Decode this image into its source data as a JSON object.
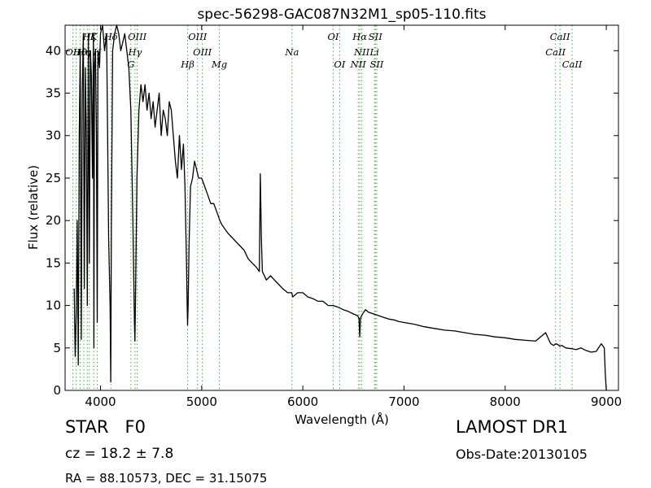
{
  "chart_data": {
    "type": "line",
    "title": "spec-56298-GAC087N32M1_sp05-110.fits",
    "xlabel": "Wavelength (Å)",
    "ylabel": "Flux (relative)",
    "xlim": [
      3650,
      9120
    ],
    "ylim": [
      0,
      43
    ],
    "xticks": [
      4000,
      5000,
      6000,
      7000,
      8000,
      9000
    ],
    "yticks": [
      0,
      5,
      10,
      15,
      20,
      25,
      30,
      35,
      40
    ],
    "grid": false,
    "series": [
      {
        "color": "#000000",
        "x": [
          3740,
          3750,
          3760,
          3770,
          3780,
          3790,
          3800,
          3810,
          3820,
          3830,
          3840,
          3850,
          3860,
          3870,
          3880,
          3890,
          3900,
          3910,
          3920,
          3930,
          3935,
          3940,
          3950,
          3960,
          3968,
          3975,
          3990,
          4000,
          4020,
          4040,
          4060,
          4080,
          4095,
          4101,
          4108,
          4120,
          4140,
          4160,
          4180,
          4200,
          4220,
          4240,
          4260,
          4280,
          4300,
          4320,
          4335,
          4340,
          4345,
          4360,
          4380,
          4400,
          4420,
          4440,
          4460,
          4480,
          4500,
          4520,
          4540,
          4560,
          4580,
          4600,
          4620,
          4640,
          4660,
          4680,
          4700,
          4720,
          4740,
          4760,
          4780,
          4800,
          4820,
          4835,
          4850,
          4857,
          4861,
          4866,
          4875,
          4890,
          4910,
          4930,
          4950,
          4970,
          5000,
          5030,
          5060,
          5090,
          5120,
          5150,
          5180,
          5200,
          5230,
          5260,
          5300,
          5340,
          5380,
          5420,
          5460,
          5500,
          5540,
          5570,
          5580,
          5590,
          5600,
          5640,
          5680,
          5720,
          5760,
          5800,
          5850,
          5890,
          5900,
          5950,
          6000,
          6050,
          6100,
          6150,
          6200,
          6250,
          6300,
          6350,
          6400,
          6450,
          6500,
          6540,
          6555,
          6563,
          6570,
          6590,
          6620,
          6650,
          6700,
          6750,
          6800,
          6850,
          6900,
          6950,
          7000,
          7100,
          7200,
          7300,
          7400,
          7500,
          7600,
          7700,
          7800,
          7900,
          8000,
          8100,
          8200,
          8300,
          8400,
          8450,
          8480,
          8500,
          8520,
          8542,
          8560,
          8600,
          8662,
          8700,
          8750,
          8800,
          8850,
          8900,
          8950,
          8980,
          8990,
          9000
        ],
        "y": [
          12,
          4,
          9,
          20,
          3,
          30,
          40,
          6,
          35,
          42,
          12,
          38,
          30,
          10,
          42,
          15,
          40,
          37,
          25,
          42,
          5,
          38,
          40,
          30,
          8,
          40,
          38,
          42,
          43,
          40,
          42,
          18,
          10,
          1,
          20,
          40,
          42,
          43,
          42,
          40,
          41,
          42,
          40,
          38,
          33,
          20,
          8,
          5.8,
          10,
          25,
          33,
          36,
          34,
          36,
          33,
          35,
          32,
          34,
          31,
          33,
          35,
          30,
          33,
          32,
          30,
          34,
          33,
          30,
          27,
          25,
          30,
          26,
          29,
          24,
          15,
          10,
          7.7,
          10,
          17,
          24,
          25,
          27,
          26,
          25,
          25,
          24,
          23,
          22,
          22,
          21,
          20,
          19.5,
          19,
          18.5,
          18,
          17.5,
          17,
          16.5,
          15.5,
          15,
          14.5,
          14,
          25.5,
          18,
          14,
          13,
          13.5,
          13,
          12.5,
          12,
          11.5,
          11.5,
          11,
          11.5,
          11.5,
          11,
          10.8,
          10.5,
          10.5,
          10,
          10,
          9.8,
          9.5,
          9.3,
          9,
          8.8,
          8.5,
          6.3,
          8.5,
          9,
          9.5,
          9.2,
          9,
          8.8,
          8.6,
          8.4,
          8.3,
          8.1,
          8,
          7.8,
          7.5,
          7.3,
          7.1,
          7,
          6.8,
          6.6,
          6.5,
          6.3,
          6.2,
          6,
          5.9,
          5.8,
          6.8,
          5.5,
          5.3,
          5.5,
          5.4,
          5.2,
          5.3,
          5,
          4.9,
          4.8,
          5,
          4.7,
          4.5,
          4.6,
          5.5,
          5,
          2,
          0
        ]
      }
    ],
    "lines": [
      {
        "x": 3727,
        "label": "OII",
        "row": 1
      },
      {
        "x": 3760,
        "label": "",
        "row": 0
      },
      {
        "x": 3798,
        "label": "Hθ",
        "row": 1
      },
      {
        "x": 3835,
        "label": "Hη",
        "row": 1
      },
      {
        "x": 3869,
        "label": "",
        "row": 0
      },
      {
        "x": 3889,
        "label": "Hζ",
        "row": 0
      },
      {
        "x": 3933,
        "label": "K",
        "row": 0
      },
      {
        "x": 3968,
        "label": "H",
        "row": 1
      },
      {
        "x": 4102,
        "label": "Hδ",
        "row": 0
      },
      {
        "x": 4300,
        "label": "G",
        "row": 2
      },
      {
        "x": 4341,
        "label": "Hγ",
        "row": 1
      },
      {
        "x": 4363,
        "label": "OIII",
        "row": 0
      },
      {
        "x": 4861,
        "label": "Hβ",
        "row": 2
      },
      {
        "x": 4959,
        "label": "OIII",
        "row": 0
      },
      {
        "x": 5007,
        "label": "OIII",
        "row": 1
      },
      {
        "x": 5175,
        "label": "Mg",
        "row": 2
      },
      {
        "x": 5893,
        "label": "Na",
        "row": 1
      },
      {
        "x": 6300,
        "label": "OI",
        "row": 0
      },
      {
        "x": 6364,
        "label": "OI",
        "row": 2
      },
      {
        "x": 6548,
        "label": "NII",
        "row": 2
      },
      {
        "x": 6563,
        "label": "Hα",
        "row": 0
      },
      {
        "x": 6583,
        "label": "NII",
        "row": 1
      },
      {
        "x": 6708,
        "label": "Li",
        "row": 1
      },
      {
        "x": 6717,
        "label": "SII",
        "row": 0
      },
      {
        "x": 6731,
        "label": "SII",
        "row": 2
      },
      {
        "x": 8498,
        "label": "CaII",
        "row": 1
      },
      {
        "x": 8542,
        "label": "CaII",
        "row": 0
      },
      {
        "x": 8662,
        "label": "CaII",
        "row": 2
      }
    ],
    "line_color": "#3fb23f"
  },
  "info": {
    "object_class": "STAR",
    "subclass": "F0",
    "cz": "cz = 18.2  ± 7.8",
    "radec": "RA = 88.10573, DEC = 31.15075",
    "survey": "LAMOST DR1",
    "obs_date": "Obs-Date:20130105"
  }
}
